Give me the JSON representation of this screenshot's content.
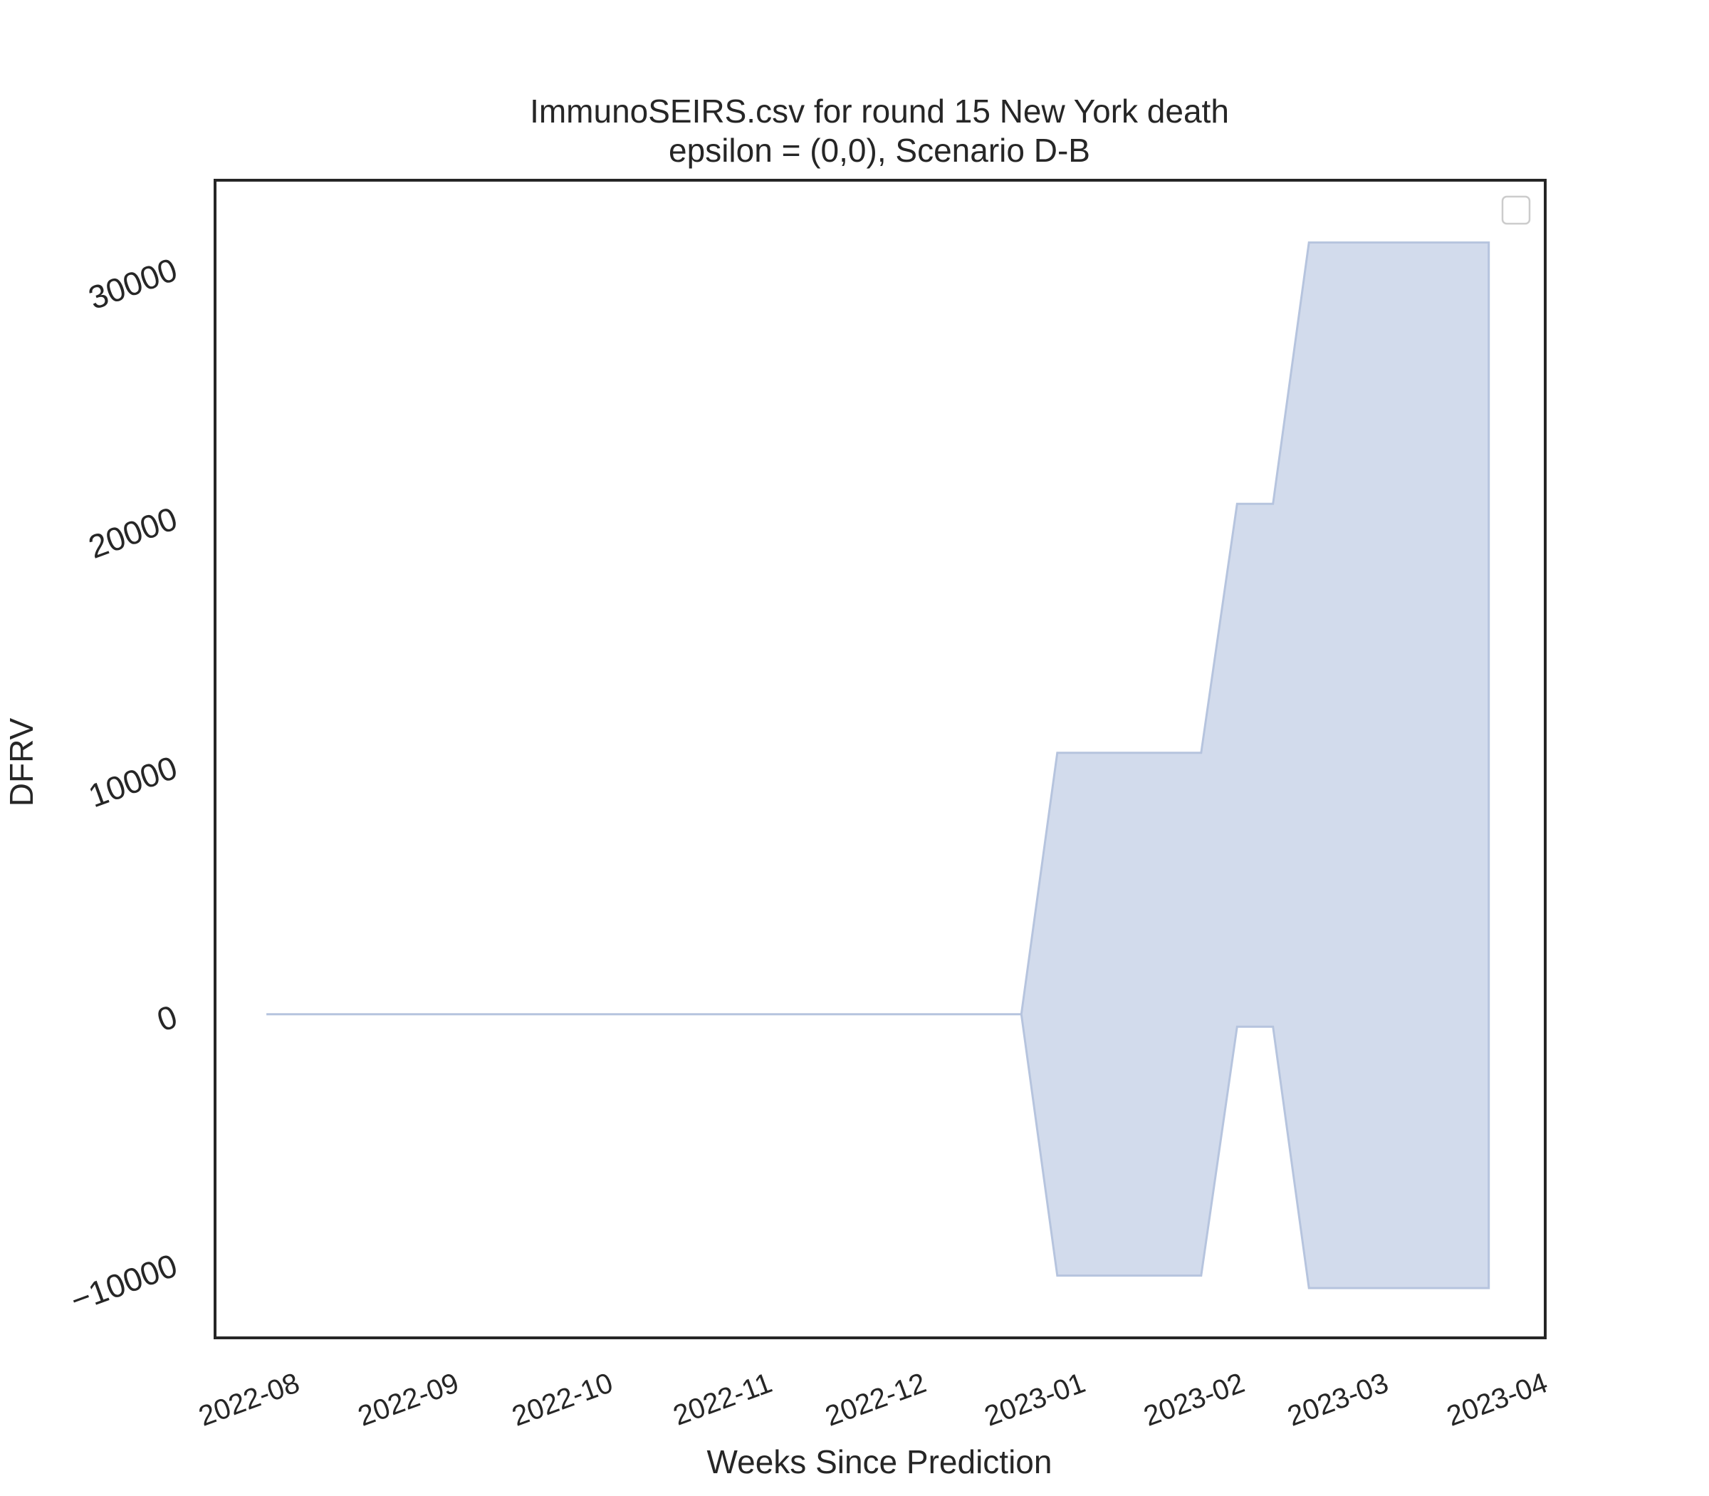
{
  "chart_data": {
    "type": "area",
    "title": "ImmunoSEIRS.csv for round 15 New York death",
    "subtitle": "epsilon = (0,0), Scenario D-B",
    "xlabel": "Weeks Since Prediction",
    "ylabel": "DFRV",
    "x_axis_type": "date",
    "xlim": [
      "2022-07-21",
      "2023-04-06"
    ],
    "ylim": [
      -13000,
      33500
    ],
    "xticks": [
      "2022-08",
      "2022-09",
      "2022-10",
      "2022-11",
      "2022-12",
      "2023-01",
      "2023-02",
      "2023-03",
      "2023-04"
    ],
    "xtick_dates": [
      "2022-08-01",
      "2022-09-01",
      "2022-10-01",
      "2022-11-01",
      "2022-12-01",
      "2023-01-01",
      "2023-02-01",
      "2023-03-01",
      "2023-04-01"
    ],
    "yticks": [
      -10000,
      0,
      10000,
      20000,
      30000
    ],
    "ytick_labels": [
      "−10000",
      "0",
      "10000",
      "20000",
      "30000"
    ],
    "grid": false,
    "legend": {
      "placement": "top-right",
      "entries": []
    },
    "colors": {
      "band_fill": "#d2dbec",
      "band_edge": "#b6c4de",
      "axes": "#262626"
    },
    "band": {
      "x": [
        "2022-07-31",
        "2022-12-25",
        "2023-01-01",
        "2023-01-29",
        "2023-02-05",
        "2023-02-12",
        "2023-02-19",
        "2023-03-26"
      ],
      "upper": [
        0,
        0,
        10500,
        10500,
        20500,
        20500,
        31000,
        31000
      ],
      "lower": [
        0,
        0,
        -10500,
        -10500,
        -500,
        -500,
        -11000,
        -11000
      ]
    }
  }
}
